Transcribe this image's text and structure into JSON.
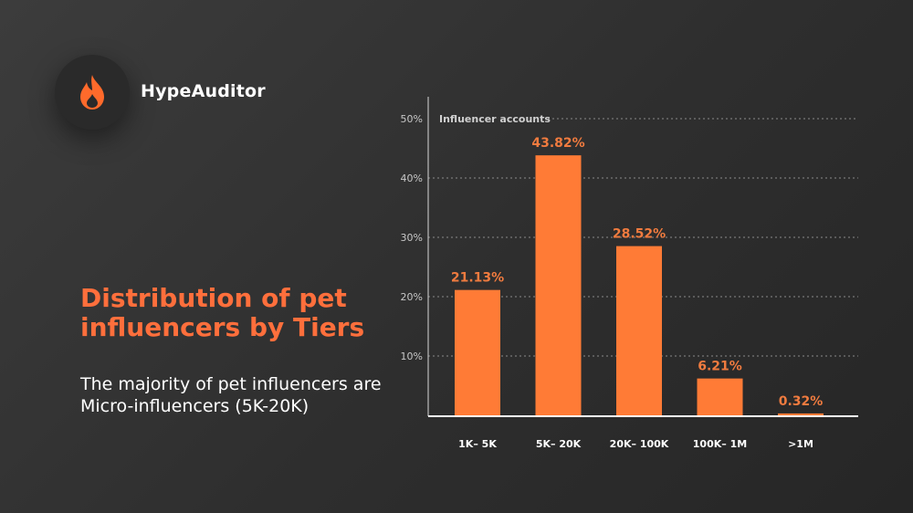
{
  "brand": {
    "name": "HypeAuditor",
    "icon": "flame-icon",
    "accent_color": "#ff7733"
  },
  "headline": "Distribution of pet influencers by Tiers",
  "subtext": " The majority of pet influencers are Micro-influencers (5K-20K)",
  "chart_data": {
    "type": "bar",
    "title": "Influencer accounts",
    "categories": [
      "1K– 5K",
      "5K– 20K",
      "20K– 100K",
      "100K– 1M",
      ">1M"
    ],
    "values": [
      21.13,
      43.82,
      28.52,
      6.21,
      0.32
    ],
    "value_labels": [
      "21.13%",
      "43.82%",
      "28.52%",
      "6.21%",
      "0.32%"
    ],
    "y_ticks": [
      "10%",
      "20%",
      "30%",
      "40%",
      "50%"
    ],
    "y_tick_values": [
      10,
      20,
      30,
      40,
      50
    ],
    "ylim": [
      0,
      50
    ],
    "grid": true,
    "bar_color": "#ff7b36",
    "label_color": "#f07b3f"
  }
}
